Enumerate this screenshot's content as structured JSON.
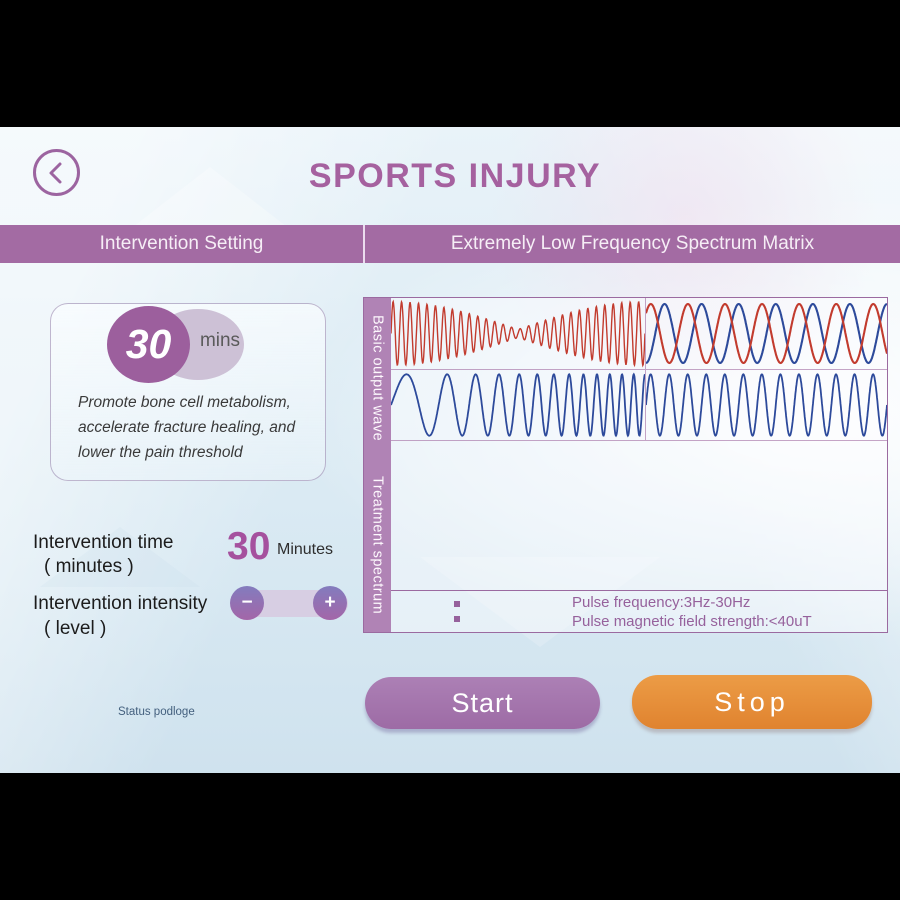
{
  "header": {
    "title": "SPORTS INJURY",
    "back_icon": "chevron-left"
  },
  "tabs": [
    {
      "label": "Intervention Setting",
      "active": true
    },
    {
      "label": "Extremely Low Frequency Spectrum Matrix",
      "active": false
    }
  ],
  "preset_card": {
    "duration_value": "30",
    "duration_unit": "mins",
    "description": "Promote bone cell metabolism,\naccelerate fracture healing, and\nlower the pain threshold"
  },
  "settings": {
    "time_label_line1": "Intervention time",
    "time_label_line2": "( minutes )",
    "time_value": "30",
    "time_unit": "Minutes",
    "intensity_label_line1": "Intervention intensity",
    "intensity_label_line2": "( level )",
    "minus_label": "−",
    "plus_label": "+"
  },
  "wave_panel": {
    "basic_label": "Basic output wave",
    "spectrum_label": "Treatment spectrum",
    "colon": ":",
    "info_lines": [
      "Pulse frequency:3Hz-30Hz",
      "Pulse magnetic field strength:<40uT"
    ]
  },
  "chart_data": {
    "type": "line",
    "title": "Basic output wave / Treatment spectrum preview",
    "legend_position": "none",
    "grid": false,
    "cells": [
      {
        "name": "basic-top-left",
        "series": [
          {
            "name": "amplitude-modulated-carrier",
            "color": "#c23b2e",
            "f0": 30,
            "f1": 30,
            "envelope": "beat",
            "env_min": 0.13,
            "stroke": 1.4,
            "amp": 0.95
          }
        ]
      },
      {
        "name": "basic-top-right",
        "series": [
          {
            "name": "sine-blue",
            "color": "#2d4a9b",
            "f0": 6.5,
            "f1": 6.5,
            "phase": -0.25,
            "stroke": 2.1,
            "amp": 0.88
          },
          {
            "name": "sine-red-phase-shifted",
            "color": "#c23b2e",
            "f0": 6.5,
            "f1": 6.5,
            "phase": 0.12,
            "stroke": 2.1,
            "amp": 0.88
          }
        ]
      },
      {
        "name": "basic-bottom-left",
        "series": [
          {
            "name": "chirp-blue-increasing-frequency",
            "color": "#2d4a9b",
            "f0": 3.5,
            "f1": 23,
            "stroke": 1.8,
            "amp": 0.93
          }
        ]
      },
      {
        "name": "basic-bottom-right",
        "series": [
          {
            "name": "sine-blue-constant",
            "color": "#2d4a9b",
            "f0": 13,
            "f1": 13,
            "stroke": 1.8,
            "amp": 0.93
          }
        ]
      }
    ],
    "treatment_spectrum": {
      "content": "empty"
    }
  },
  "actions": {
    "start": "Start",
    "stop": "Stop"
  },
  "status": {
    "text": "Status podloge"
  },
  "colors": {
    "accent_purple": "#a36ba3",
    "accent_orange": "#e58c35",
    "wave_red": "#c23b2e",
    "wave_blue": "#2d4a9b"
  }
}
